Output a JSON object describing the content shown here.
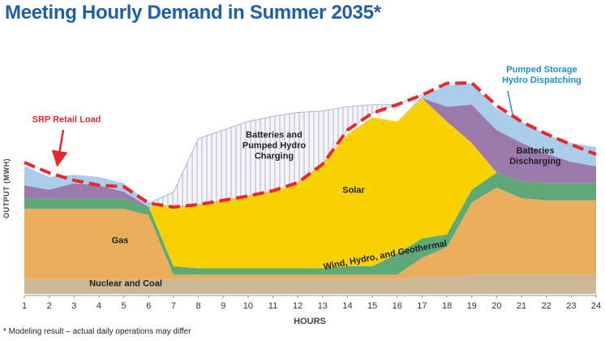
{
  "chart_data": {
    "type": "stacked-area",
    "title": "Meeting Hourly Demand in Summer 2035*",
    "footnote": "* Modeling result – actual daily operations may differ",
    "x_label": "HOURS",
    "y_label": "OUTPUT (MWH)",
    "x": [
      1,
      2,
      3,
      4,
      5,
      6,
      7,
      8,
      9,
      10,
      11,
      12,
      13,
      14,
      15,
      16,
      17,
      18,
      19,
      20,
      21,
      22,
      23,
      24
    ],
    "xlim": [
      1,
      24
    ],
    "xticks": [
      1,
      2,
      3,
      4,
      5,
      6,
      7,
      8,
      9,
      10,
      11,
      12,
      13,
      14,
      15,
      16,
      17,
      18,
      19,
      20,
      21,
      22,
      23,
      24
    ],
    "ylim": [
      0,
      100
    ],
    "series": [
      {
        "name": "Nuclear and Coal",
        "color": "#cdb895",
        "values": [
          7,
          7,
          7,
          7,
          7,
          7,
          7,
          7,
          7,
          7,
          7,
          7,
          7,
          7,
          7,
          7,
          8,
          8,
          9,
          9,
          9,
          9,
          9,
          9
        ]
      },
      {
        "name": "Gas",
        "color": "#eaae5c",
        "values": [
          33,
          33,
          33,
          33,
          33,
          30,
          2,
          2,
          2,
          2,
          2,
          2,
          2,
          2,
          2,
          2,
          9,
          14,
          34,
          41,
          36,
          35,
          35,
          35
        ]
      },
      {
        "name": "Wind, Hydro, and Geothermal",
        "color": "#5fa878",
        "values": [
          5,
          5,
          5,
          5,
          5,
          4,
          4,
          3,
          3,
          3,
          3,
          3,
          3,
          4,
          4,
          10,
          9,
          6,
          6,
          7,
          8,
          8,
          8,
          8
        ]
      },
      {
        "name": "Solar",
        "color": "#f8d200",
        "values": [
          0,
          0,
          0,
          0,
          0,
          0,
          29,
          31,
          33,
          35,
          36,
          40,
          49,
          62,
          70,
          62,
          66,
          53,
          22,
          0,
          0,
          0,
          0,
          0
        ]
      },
      {
        "name": "Batteries Discharging",
        "color": "#9c79ac",
        "values": [
          6,
          4,
          7,
          6,
          3,
          0,
          0,
          0,
          0,
          0,
          0,
          0,
          0,
          0,
          0,
          0,
          0,
          7,
          18,
          20,
          18,
          14,
          10,
          8
        ]
      },
      {
        "name": "Pumped Storage Hydro Dispatching",
        "color": "#a9cdea",
        "values": [
          9,
          6,
          4,
          4,
          4,
          2,
          0,
          0,
          0,
          0,
          0,
          0,
          0,
          0,
          0,
          0,
          1,
          10,
          10,
          10,
          10,
          9,
          9,
          9
        ]
      }
    ],
    "load": {
      "name": "SRP Retail Load",
      "color": "#e8282a",
      "values": [
        61.8,
        56.9,
        53.4,
        51.1,
        50.4,
        42.7,
        40.8,
        42,
        44,
        46,
        48.5,
        52.3,
        61,
        77,
        85,
        89,
        93.5,
        99,
        99.2,
        88.5,
        81,
        75.2,
        70.2,
        65.6
      ]
    },
    "charging": {
      "name": "Batteries and Pumped Hydro Charging",
      "color": "#aab8d6",
      "values": [
        null,
        null,
        null,
        null,
        null,
        0,
        7,
        31,
        33,
        35,
        35,
        33,
        25,
        11,
        4,
        0,
        0,
        null,
        null,
        null,
        null,
        null,
        null,
        null
      ]
    }
  }
}
